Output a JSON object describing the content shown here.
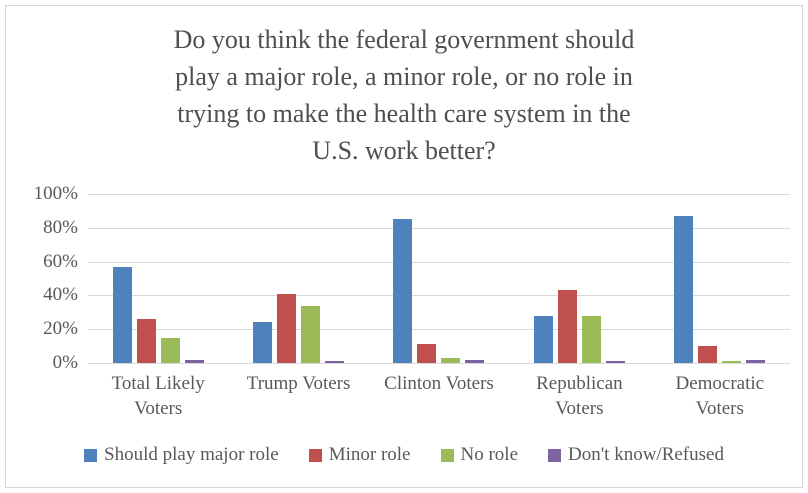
{
  "title": "Do you think the federal government should\nplay a major role, a minor role, or no role in\ntrying to make the health care system in the\nU.S. work better?",
  "chart_data": {
    "type": "bar",
    "title": "Do you think the federal government should play a major role, a minor role, or no role in trying to make the health care system in the U.S. work better?",
    "categories": [
      "Total Likely Voters",
      "Trump Voters",
      "Clinton Voters",
      "Republican Voters",
      "Democratic Voters"
    ],
    "category_display": [
      "Total Likely\nVoters",
      "Trump Voters",
      "Clinton Voters",
      "Republican\nVoters",
      "Democratic\nVoters"
    ],
    "series": [
      {
        "name": "Should play major role",
        "color": "#4F81BD",
        "values": [
          57,
          24,
          85,
          28,
          87
        ]
      },
      {
        "name": "Minor role",
        "color": "#C0504D",
        "values": [
          26,
          41,
          11,
          43,
          10
        ]
      },
      {
        "name": "No role",
        "color": "#9BBB59",
        "values": [
          15,
          34,
          3,
          28,
          1
        ]
      },
      {
        "name": "Don't know/Refused",
        "color": "#7E62A1",
        "values": [
          2,
          1,
          2,
          1,
          2
        ]
      }
    ],
    "xlabel": "",
    "ylabel": "",
    "ylim": [
      0,
      100
    ],
    "y_ticks": [
      0,
      20,
      40,
      60,
      80,
      100
    ],
    "y_tick_labels": [
      "0%",
      "20%",
      "40%",
      "60%",
      "80%",
      "100%"
    ],
    "grid": true,
    "legend_position": "bottom"
  },
  "colors": {
    "text": "#595959",
    "title_text": "#4F4F4F",
    "gridline": "#D9D9D9",
    "frame_border": "#D6D6D6",
    "background": "#FFFFFF"
  }
}
